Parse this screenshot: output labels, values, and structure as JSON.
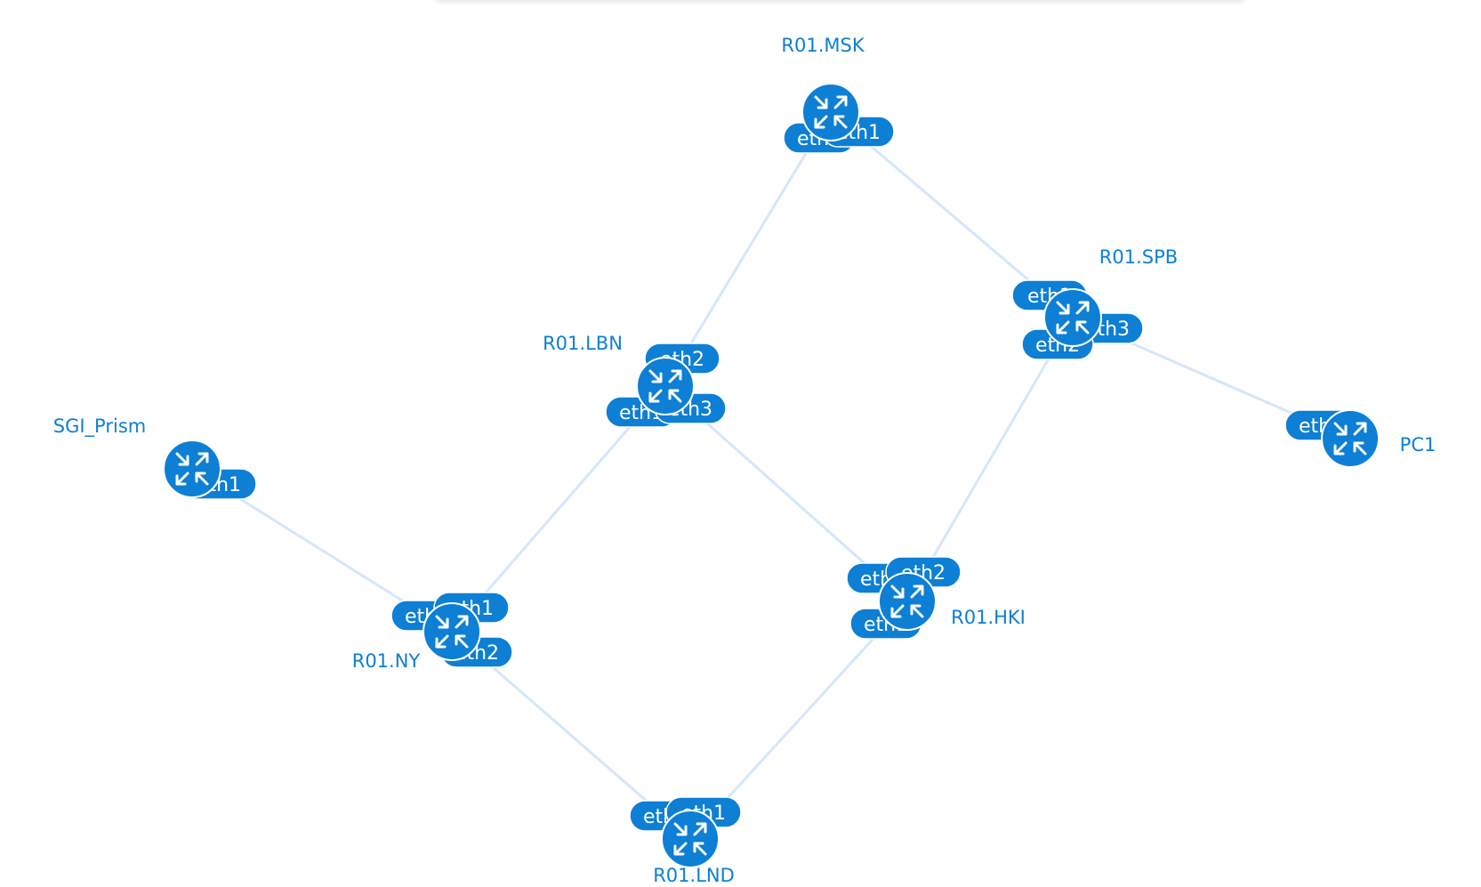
{
  "colors": {
    "accent": "#0d7fd4",
    "link": "#d6e6fb",
    "background": "#ffffff"
  },
  "icons": {
    "router": "router-icon"
  },
  "nodes": [
    {
      "id": "msk",
      "label": "R01.MSK",
      "ports": [
        "eth2",
        "eth1"
      ]
    },
    {
      "id": "spb",
      "label": "R01.SPB",
      "ports": [
        "eth1",
        "eth3",
        "eth2"
      ]
    },
    {
      "id": "lbn",
      "label": "R01.LBN",
      "ports": [
        "eth2",
        "eth1",
        "eth3"
      ]
    },
    {
      "id": "sgi",
      "label": "SGI_Prism",
      "ports": [
        "eth1"
      ]
    },
    {
      "id": "ny",
      "label": "R01.NY",
      "ports": [
        "eth3",
        "eth1",
        "eth2"
      ]
    },
    {
      "id": "hki",
      "label": "R01.HKI",
      "ports": [
        "eth3",
        "eth2",
        "eth1"
      ]
    },
    {
      "id": "pc1",
      "label": "PC1",
      "ports": [
        "eth1"
      ]
    },
    {
      "id": "lnd",
      "label": "R01.LND",
      "ports": [
        "eth2",
        "eth1"
      ]
    }
  ],
  "links": [
    {
      "from": "msk",
      "to": "lbn"
    },
    {
      "from": "msk",
      "to": "spb"
    },
    {
      "from": "spb",
      "to": "pc1"
    },
    {
      "from": "spb",
      "to": "hki"
    },
    {
      "from": "lbn",
      "to": "ny"
    },
    {
      "from": "lbn",
      "to": "hki"
    },
    {
      "from": "sgi",
      "to": "ny"
    },
    {
      "from": "ny",
      "to": "lnd"
    },
    {
      "from": "hki",
      "to": "lnd"
    }
  ]
}
